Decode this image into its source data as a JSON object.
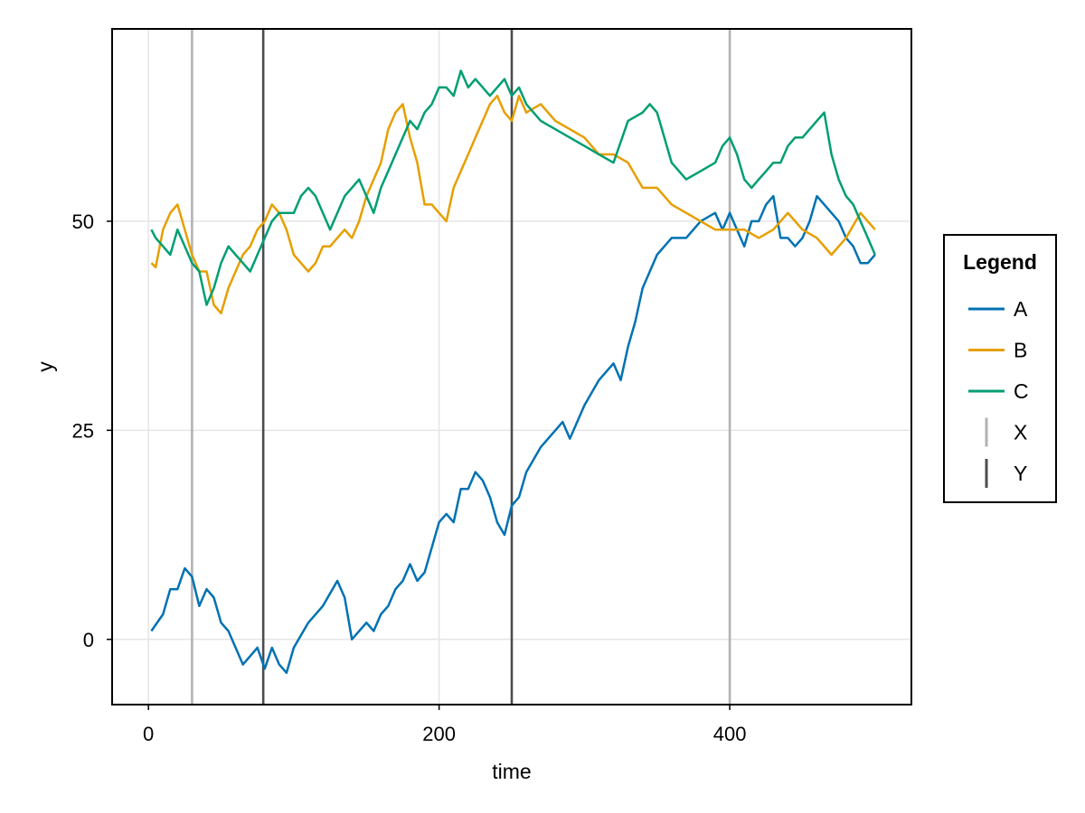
{
  "chart_data": {
    "type": "line",
    "title": "",
    "xlabel": "time",
    "ylabel": "y",
    "xlim": [
      -25,
      525
    ],
    "ylim": [
      -7.8,
      73
    ],
    "x_ticks": [
      0,
      200,
      400
    ],
    "y_ticks": [
      0,
      25,
      50
    ],
    "x_tick_labels": [
      "0",
      "200",
      "400"
    ],
    "y_tick_labels": [
      "0",
      "25",
      "50"
    ],
    "grid": true,
    "legend": {
      "title": "Legend",
      "placement": "right",
      "entries": [
        {
          "label": "A",
          "kind": "line",
          "color": "#0072b2"
        },
        {
          "label": "B",
          "kind": "line",
          "color": "#e69f00"
        },
        {
          "label": "C",
          "kind": "line",
          "color": "#009e73"
        },
        {
          "label": "X",
          "kind": "vline",
          "color": "#b3b3b3"
        },
        {
          "label": "Y",
          "kind": "vline",
          "color": "#4d4d4d"
        }
      ]
    },
    "vlines": [
      {
        "name": "X",
        "color": "#b3b3b3",
        "x": [
          30,
          400
        ]
      },
      {
        "name": "Y",
        "color": "#4d4d4d",
        "x": [
          79,
          250
        ]
      }
    ],
    "series": [
      {
        "name": "A",
        "color": "#0072b2",
        "x": [
          2,
          10,
          15,
          20,
          25,
          30,
          35,
          40,
          45,
          50,
          55,
          60,
          65,
          70,
          75,
          80,
          85,
          90,
          95,
          100,
          110,
          120,
          130,
          135,
          140,
          150,
          155,
          160,
          165,
          170,
          175,
          180,
          185,
          190,
          195,
          200,
          205,
          210,
          215,
          220,
          225,
          230,
          235,
          240,
          245,
          250,
          255,
          260,
          270,
          280,
          285,
          290,
          300,
          310,
          320,
          325,
          330,
          335,
          340,
          345,
          350,
          355,
          360,
          370,
          380,
          390,
          395,
          400,
          405,
          410,
          415,
          420,
          425,
          430,
          435,
          440,
          445,
          450,
          455,
          460,
          465,
          470,
          475,
          480,
          485,
          490,
          495,
          500
        ],
        "values": [
          1,
          3,
          6,
          6,
          8.5,
          7.5,
          4,
          6,
          5,
          2,
          1,
          -1,
          -3,
          -2,
          -1,
          -3.5,
          -1,
          -3,
          -4,
          -1,
          2,
          4,
          7,
          5,
          0,
          2,
          1,
          3,
          4,
          6,
          7,
          9,
          7,
          8,
          11,
          14,
          15,
          14,
          18,
          18,
          20,
          19,
          17,
          14,
          12.5,
          16,
          17,
          20,
          23,
          25,
          26,
          24,
          28,
          31,
          33,
          31,
          35,
          38,
          42,
          44,
          46,
          47,
          48,
          48,
          50,
          51,
          49,
          51,
          49,
          47,
          50,
          50,
          52,
          53,
          48,
          48,
          47,
          48,
          50,
          53,
          52,
          51,
          50,
          48,
          47,
          45,
          45,
          46
        ]
      },
      {
        "name": "B",
        "color": "#e69f00",
        "x": [
          2,
          5,
          10,
          15,
          20,
          25,
          30,
          35,
          40,
          45,
          50,
          55,
          60,
          65,
          70,
          75,
          80,
          85,
          90,
          95,
          100,
          105,
          110,
          115,
          120,
          125,
          130,
          135,
          140,
          145,
          150,
          155,
          160,
          165,
          170,
          175,
          180,
          185,
          190,
          195,
          200,
          205,
          210,
          215,
          220,
          225,
          230,
          235,
          240,
          245,
          250,
          255,
          260,
          270,
          280,
          290,
          300,
          310,
          320,
          330,
          340,
          350,
          360,
          370,
          380,
          390,
          400,
          410,
          420,
          430,
          440,
          450,
          460,
          470,
          480,
          490,
          500
        ],
        "values": [
          45,
          44.5,
          49,
          51,
          52,
          49,
          46,
          44,
          44,
          40,
          39,
          42,
          44,
          46,
          47,
          49,
          50,
          52,
          51,
          49,
          46,
          45,
          44,
          45,
          47,
          47,
          48,
          49,
          48,
          50,
          53,
          55,
          57,
          61,
          63,
          64,
          60,
          57,
          52,
          52,
          51,
          50,
          54,
          56,
          58,
          60,
          62,
          64,
          65,
          63,
          62,
          65,
          63,
          64,
          62,
          61,
          60,
          58,
          58,
          57,
          54,
          54,
          52,
          51,
          50,
          49,
          49,
          49,
          48,
          49,
          51,
          49,
          48,
          46,
          48,
          51,
          49
        ]
      },
      {
        "name": "C",
        "color": "#009e73",
        "x": [
          2,
          5,
          10,
          15,
          20,
          25,
          30,
          35,
          40,
          45,
          50,
          55,
          60,
          65,
          70,
          75,
          80,
          85,
          90,
          95,
          100,
          105,
          110,
          115,
          120,
          125,
          130,
          135,
          140,
          145,
          150,
          155,
          160,
          165,
          170,
          175,
          180,
          185,
          190,
          195,
          200,
          205,
          210,
          215,
          220,
          225,
          230,
          235,
          240,
          245,
          250,
          255,
          260,
          270,
          280,
          290,
          300,
          310,
          320,
          330,
          340,
          345,
          350,
          355,
          360,
          370,
          380,
          390,
          395,
          400,
          405,
          410,
          415,
          420,
          425,
          430,
          435,
          440,
          445,
          450,
          455,
          460,
          465,
          470,
          475,
          480,
          485,
          490,
          495,
          500
        ],
        "values": [
          49,
          48,
          47,
          46,
          49,
          47,
          45,
          44,
          40,
          42,
          45,
          47,
          46,
          45,
          44,
          46,
          48,
          50,
          51,
          51,
          51,
          53,
          54,
          53,
          51,
          49,
          51,
          53,
          54,
          55,
          53,
          51,
          54,
          56,
          58,
          60,
          62,
          61,
          63,
          64,
          66,
          66,
          65,
          68,
          66,
          67,
          66,
          65,
          66,
          67,
          65,
          66,
          64,
          62,
          61,
          60,
          59,
          58,
          57,
          62,
          63,
          64,
          63,
          60,
          57,
          55,
          56,
          57,
          59,
          60,
          58,
          55,
          54,
          55,
          56,
          57,
          57,
          59,
          60,
          60,
          61,
          62,
          63,
          58,
          55,
          53,
          52,
          50,
          48,
          46
        ]
      }
    ]
  }
}
